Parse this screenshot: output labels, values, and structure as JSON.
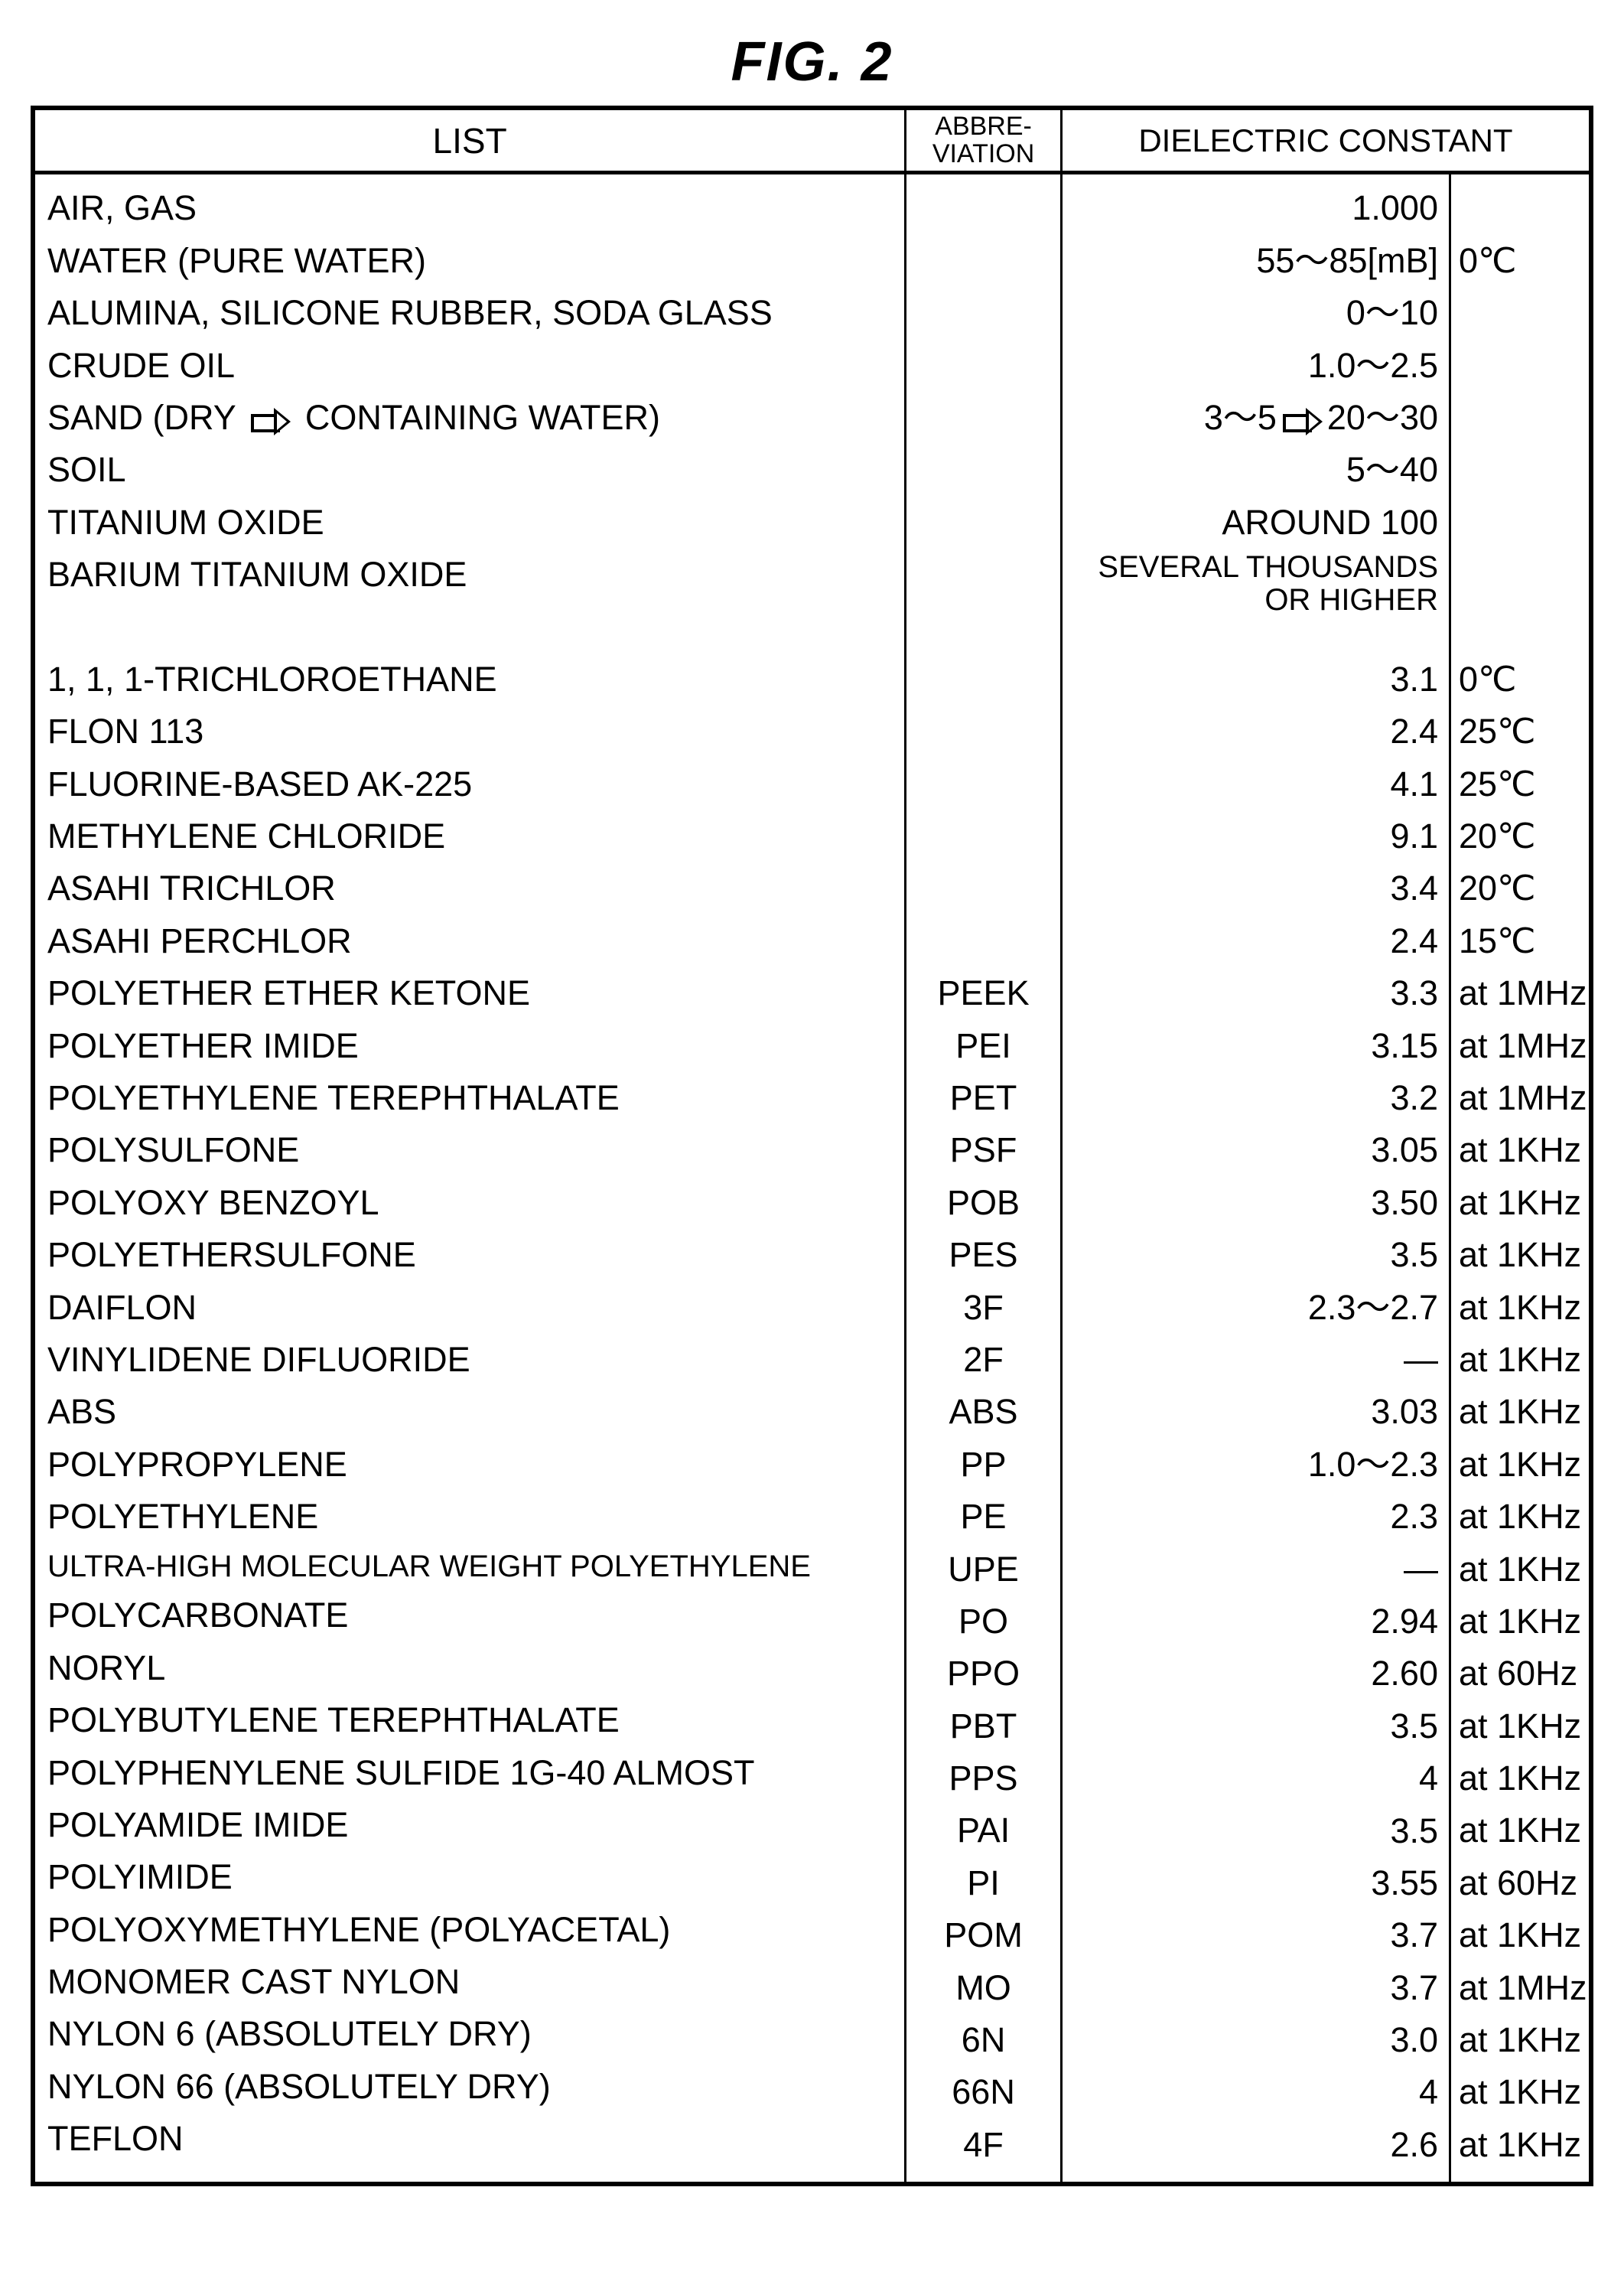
{
  "figure_title": "FIG. 2",
  "headers": {
    "list": "LIST",
    "abbr": "ABBRE-\nVIATION",
    "dc": "DIELECTRIC CONSTANT"
  },
  "rows": [
    {
      "list": "AIR, GAS",
      "abbr": "",
      "dc": "1.000",
      "cond": ""
    },
    {
      "list": "WATER (PURE WATER)",
      "abbr": "",
      "dc": "55～85[mB]",
      "cond": "0℃"
    },
    {
      "list": "ALUMINA, SILICONE RUBBER, SODA GLASS",
      "abbr": "",
      "dc": "0～10",
      "cond": ""
    },
    {
      "list": "CRUDE OIL",
      "abbr": "",
      "dc": "1.0～2.5",
      "cond": ""
    },
    {
      "list": "SAND (DRY {ARROW} CONTAINING WATER)",
      "abbr": "",
      "dc": "3～5{ARROW}20～30",
      "cond": ""
    },
    {
      "list": "SOIL",
      "abbr": "",
      "dc": "5～40",
      "cond": ""
    },
    {
      "list": "TITANIUM OXIDE",
      "abbr": "",
      "dc": "AROUND 100",
      "cond": ""
    },
    {
      "list": "BARIUM TITANIUM OXIDE",
      "abbr": "",
      "dc": "SEVERAL THOUSANDS\nOR HIGHER",
      "cond": "",
      "twoline": true
    },
    {
      "list": "1, 1, 1-TRICHLOROETHANE",
      "abbr": "",
      "dc": "3.1",
      "cond": "0℃"
    },
    {
      "list": "FLON 113",
      "abbr": "",
      "dc": "2.4",
      "cond": "25℃"
    },
    {
      "list": "FLUORINE-BASED AK-225",
      "abbr": "",
      "dc": "4.1",
      "cond": "25℃"
    },
    {
      "list": "METHYLENE CHLORIDE",
      "abbr": "",
      "dc": "9.1",
      "cond": "20℃"
    },
    {
      "list": "ASAHI TRICHLOR",
      "abbr": "",
      "dc": "3.4",
      "cond": "20℃"
    },
    {
      "list": "ASAHI PERCHLOR",
      "abbr": "",
      "dc": "2.4",
      "cond": "15℃"
    },
    {
      "list": "POLYETHER ETHER KETONE",
      "abbr": "PEEK",
      "dc": "3.3",
      "cond": "at 1MHz"
    },
    {
      "list": "POLYETHER IMIDE",
      "abbr": "PEI",
      "dc": "3.15",
      "cond": "at 1MHz"
    },
    {
      "list": "POLYETHYLENE TEREPHTHALATE",
      "abbr": "PET",
      "dc": "3.2",
      "cond": "at 1MHz"
    },
    {
      "list": "POLYSULFONE",
      "abbr": "PSF",
      "dc": "3.05",
      "cond": "at 1KHz"
    },
    {
      "list": "POLYOXY BENZOYL",
      "abbr": "POB",
      "dc": "3.50",
      "cond": "at 1KHz"
    },
    {
      "list": "POLYETHERSULFONE",
      "abbr": "PES",
      "dc": "3.5",
      "cond": "at 1KHz"
    },
    {
      "list": "DAIFLON",
      "abbr": "3F",
      "dc": "2.3～2.7",
      "cond": "at 1KHz"
    },
    {
      "list": "VINYLIDENE DIFLUORIDE",
      "abbr": "2F",
      "dc": "—",
      "cond": "at 1KHz"
    },
    {
      "list": "ABS",
      "abbr": "ABS",
      "dc": "3.03",
      "cond": "at 1KHz"
    },
    {
      "list": "POLYPROPYLENE",
      "abbr": "PP",
      "dc": "1.0～2.3",
      "cond": "at 1KHz"
    },
    {
      "list": "POLYETHYLENE",
      "abbr": "PE",
      "dc": "2.3",
      "cond": "at 1KHz"
    },
    {
      "list": "ULTRA-HIGH MOLECULAR WEIGHT POLYETHYLENE",
      "abbr": "UPE",
      "dc": "—",
      "cond": "at 1KHz",
      "small": true
    },
    {
      "list": "POLYCARBONATE",
      "abbr": "PO",
      "dc": "2.94",
      "cond": "at 1KHz"
    },
    {
      "list": "NORYL",
      "abbr": "PPO",
      "dc": "2.60",
      "cond": "at 60Hz"
    },
    {
      "list": "POLYBUTYLENE TEREPHTHALATE",
      "abbr": "PBT",
      "dc": "3.5",
      "cond": "at 1KHz"
    },
    {
      "list": "POLYPHENYLENE SULFIDE 1G-40 ALMOST",
      "abbr": "PPS",
      "dc": "4",
      "cond": "at 1KHz"
    },
    {
      "list": "POLYAMIDE IMIDE",
      "abbr": "PAI",
      "dc": "3.5",
      "cond": "at 1KHz"
    },
    {
      "list": "POLYIMIDE",
      "abbr": "PI",
      "dc": "3.55",
      "cond": "at 60Hz"
    },
    {
      "list": "POLYOXYMETHYLENE (POLYACETAL)",
      "abbr": "POM",
      "dc": "3.7",
      "cond": "at 1KHz"
    },
    {
      "list": "MONOMER CAST NYLON",
      "abbr": "MO",
      "dc": "3.7",
      "cond": "at 1MHz"
    },
    {
      "list": "NYLON 6 (ABSOLUTELY DRY)",
      "abbr": "6N",
      "dc": "3.0",
      "cond": "at 1KHz"
    },
    {
      "list": "NYLON 66 (ABSOLUTELY DRY)",
      "abbr": "66N",
      "dc": "4",
      "cond": "at 1KHz"
    },
    {
      "list": "TEFLON",
      "abbr": "4F",
      "dc": "2.6",
      "cond": "at 1KHz"
    }
  ]
}
